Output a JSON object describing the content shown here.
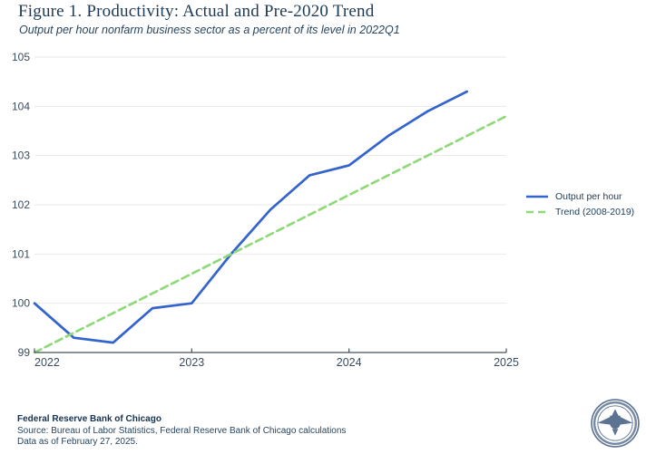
{
  "chart_data": {
    "type": "line",
    "title": "Figure 1. Productivity: Actual and Pre-2020 Trend",
    "subtitle": "Output per hour nonfarm business sector as a percent of its level in 2022Q1",
    "x_axis": {
      "tick_labels": [
        "2022",
        "2023",
        "2024",
        "2025"
      ],
      "tick_quarter_positions": [
        0,
        4,
        8,
        12
      ],
      "quarters_total": 12
    },
    "y_axis": {
      "ticks": [
        99,
        100,
        101,
        102,
        103,
        104,
        105
      ],
      "range": [
        99,
        105
      ]
    },
    "grid": "horizontal",
    "legend_position": "right-middle",
    "series": [
      {
        "name": "Output per hour",
        "line_style": "solid",
        "color": "#3364cd",
        "x_quarters": [
          0,
          1,
          2,
          3,
          4,
          5,
          6,
          7,
          8,
          9,
          10,
          11
        ],
        "x_labels": [
          "2022Q1",
          "2022Q2",
          "2022Q3",
          "2022Q4",
          "2023Q1",
          "2023Q2",
          "2023Q3",
          "2023Q4",
          "2024Q1",
          "2024Q2",
          "2024Q3",
          "2024Q4"
        ],
        "values": [
          100.0,
          99.3,
          99.2,
          99.9,
          100.0,
          101.0,
          101.9,
          102.6,
          102.8,
          103.4,
          103.9,
          104.3
        ]
      },
      {
        "name": "Trend (2008-2019)",
        "line_style": "dashed",
        "color": "#90d97a",
        "x_quarters": [
          0,
          12
        ],
        "x_labels": [
          "2022Q1",
          "2025Q1"
        ],
        "values": [
          99.0,
          103.8
        ]
      }
    ],
    "colors": {
      "grid": "#e9e9e9",
      "axis": "#44505d",
      "tick_label": "#3a4c60"
    }
  },
  "footer": {
    "org": "Federal Reserve Bank of Chicago",
    "source": "Source: Bureau of Labor Statistics, Federal Reserve Bank of Chicago calculations",
    "as_of": "Data as of February 27, 2025."
  },
  "icons": {
    "seal": "chicago-fed-seal",
    "seal_color": "#5d7392"
  }
}
